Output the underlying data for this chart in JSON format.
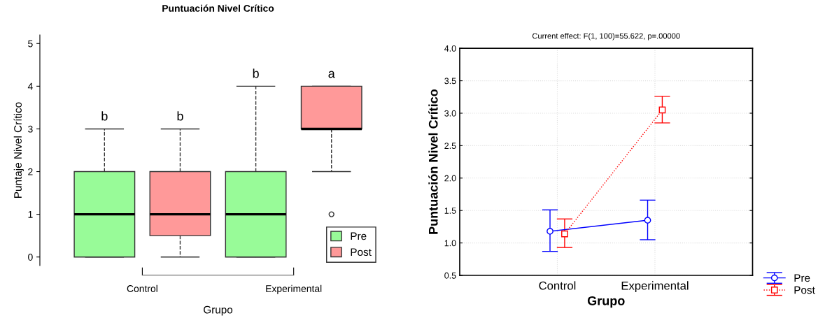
{
  "chart_data": [
    {
      "type": "box",
      "title": "Puntuación Nivel Crítico",
      "xlabel": "Grupo",
      "ylabel": "Puntaje Nivel Crítico",
      "categories": [
        "Control",
        "Experimental"
      ],
      "series": [
        {
          "name": "Pre",
          "color": "#98fb98",
          "boxes": [
            {
              "low": 0,
              "q1": 0,
              "median": 1,
              "q3": 2,
              "high": 3
            },
            {
              "low": 0,
              "q1": 0,
              "median": 1,
              "q3": 2,
              "high": 4
            }
          ]
        },
        {
          "name": "Post",
          "color": "#ff9999",
          "boxes": [
            {
              "low": 0,
              "q1": 0.5,
              "median": 1,
              "q3": 2,
              "high": 3
            },
            {
              "low": 2,
              "q1": 3,
              "median": 3,
              "q3": 4,
              "high": 4,
              "outliers": [
                1
              ]
            }
          ]
        }
      ],
      "ylim": [
        -0.2,
        5.2
      ],
      "yticks": [
        0,
        1,
        2,
        3,
        4,
        5
      ],
      "legend": "bottom right",
      "grid": false,
      "annotations": [
        "b",
        "b",
        "b",
        "a"
      ]
    },
    {
      "type": "line",
      "title": "Current effect: F(1, 100)=55.622, p=.00000",
      "xlabel": "Grupo",
      "ylabel": "Puntuación Nivel Crítico",
      "categories": [
        "Control",
        "Experimental"
      ],
      "series": [
        {
          "name": "Pre",
          "color": "#0000ff",
          "values": [
            1.18,
            1.35
          ],
          "errors": [
            [
              0.87,
              1.51
            ],
            [
              1.05,
              1.66
            ]
          ],
          "marker": "circle",
          "line_style": "solid"
        },
        {
          "name": "Post",
          "color": "#ff0000",
          "values": [
            1.14,
            3.05
          ],
          "errors": [
            [
              0.93,
              1.37
            ],
            [
              2.85,
              3.26
            ]
          ],
          "marker": "square",
          "line_style": "dotted"
        }
      ],
      "ylim": [
        0.5,
        4.0
      ],
      "yticks": [
        {
          "value": 0.5,
          "label": "0.5"
        },
        {
          "value": 1.0,
          "label": "1.0"
        },
        {
          "value": 1.5,
          "label": "1.5"
        },
        {
          "value": 2.0,
          "label": "2.0"
        },
        {
          "value": 2.5,
          "label": "2.5"
        },
        {
          "value": 3.0,
          "label": "3.0"
        },
        {
          "value": 3.5,
          "label": "3.5"
        },
        {
          "value": 4.0,
          "label": "4.0"
        }
      ],
      "grid": true,
      "legend": "bottom right"
    }
  ]
}
